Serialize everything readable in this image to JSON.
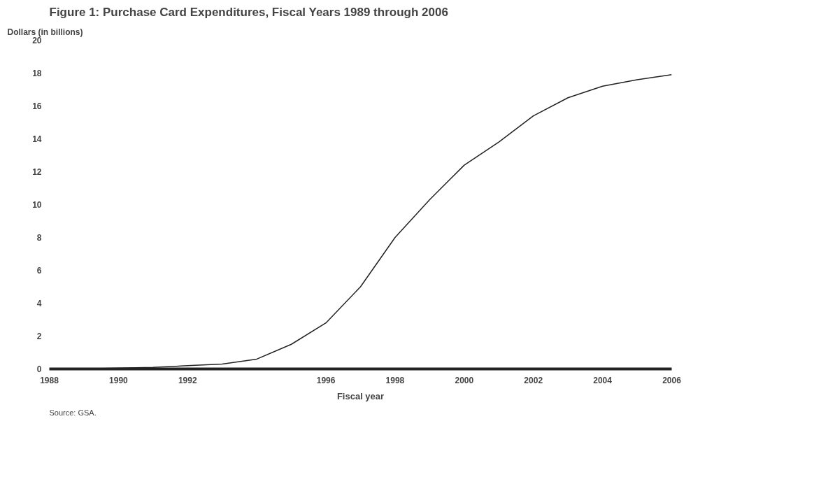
{
  "chart_data": {
    "type": "line",
    "title": "Figure 1: Purchase Card Expenditures, Fiscal Years 1989 through 2006",
    "ylabel": "Dollars (in billions)",
    "xlabel": "Fiscal year",
    "annotations": [
      "Source: GSA."
    ],
    "x": [
      1989,
      1990,
      1991,
      1992,
      1993,
      1994,
      1995,
      1996,
      1997,
      1998,
      1999,
      2000,
      2001,
      2002,
      2003,
      2004,
      2005,
      2006
    ],
    "series": [
      {
        "color": "#222222",
        "values": [
          0.01,
          0.05,
          0.1,
          0.2,
          0.3,
          0.6,
          1.5,
          2.8,
          5.0,
          8.0,
          10.3,
          12.4,
          13.8,
          15.4,
          16.5,
          17.2,
          17.6,
          17.9
        ]
      }
    ],
    "xlim": [
      1988,
      2006
    ],
    "ylim": [
      0,
      20
    ],
    "xticks": [
      1988,
      1990,
      1992,
      1996,
      1998,
      2000,
      2002,
      2004,
      2006
    ],
    "yticks": [
      0,
      2,
      4,
      6,
      8,
      10,
      12,
      14,
      16,
      18,
      20
    ],
    "grid": false,
    "marker": "none",
    "line_style": "solid"
  }
}
